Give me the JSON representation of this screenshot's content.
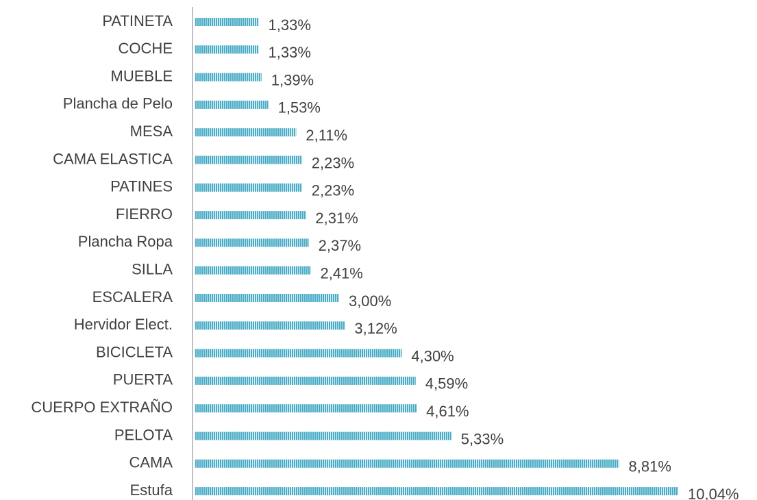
{
  "chart_data": {
    "type": "hbar",
    "categories": [
      "PATINETA",
      "COCHE",
      "MUEBLE",
      "Plancha de Pelo",
      "MESA",
      "CAMA ELASTICA",
      "PATINES",
      "FIERRO",
      "Plancha Ropa",
      "SILLA",
      "ESCALERA",
      "Hervidor Elect.",
      "BICICLETA",
      "PUERTA",
      "CUERPO EXTRAÑO",
      "PELOTA",
      "CAMA",
      "Estufa"
    ],
    "values": [
      1.33,
      1.33,
      1.39,
      1.53,
      2.11,
      2.23,
      2.23,
      2.31,
      2.37,
      2.41,
      3.0,
      3.12,
      4.3,
      4.59,
      4.61,
      5.33,
      8.81,
      10.04
    ],
    "value_labels": [
      "1,33%",
      "1,33%",
      "1,39%",
      "1,53%",
      "2,11%",
      "2,23%",
      "2,23%",
      "2,31%",
      "2,37%",
      "2,41%",
      "3,00%",
      "3,12%",
      "4,30%",
      "4,59%",
      "4,61%",
      "5,33%",
      "8,81%",
      "10,04%"
    ],
    "color": "#4bacc6"
  }
}
